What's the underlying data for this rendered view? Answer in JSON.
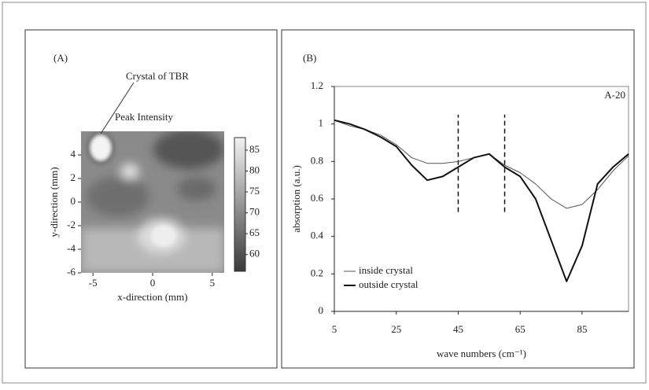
{
  "chart_data": [
    {
      "type": "heatmap",
      "panel_label": "(A)",
      "annotation": "Crystal of TBR",
      "subtitle": "Peak Intensity",
      "xlabel": "x-direction (mm)",
      "ylabel": "y-direction (mm)",
      "xlim": [
        -6,
        6
      ],
      "xticks": [
        -5,
        0,
        5
      ],
      "ylim": [
        -6,
        6
      ],
      "yticks": [
        -6,
        -4,
        -2,
        0,
        2,
        4
      ],
      "clim": [
        56,
        88
      ],
      "cticks": [
        60,
        65,
        70,
        75,
        80,
        85
      ],
      "colormap": [
        "#3a3a3a",
        "#f2f2f2"
      ]
    },
    {
      "type": "line",
      "panel_label": "(B)",
      "title": "A-20",
      "xlabel": "wave numbers (cm⁻¹)",
      "ylabel": "absorption (a.u.)",
      "xlim": [
        5,
        100
      ],
      "xticks": [
        5,
        25,
        45,
        65,
        85
      ],
      "ylim": [
        0,
        1.2
      ],
      "yticks": [
        0,
        0.2,
        0.4,
        0.6,
        0.8,
        1,
        1.2
      ],
      "vlines": [
        45,
        60
      ],
      "vline_ylim": [
        0.53,
        1.05
      ],
      "x": [
        5,
        10,
        15,
        20,
        25,
        30,
        35,
        40,
        45,
        50,
        55,
        60,
        65,
        70,
        75,
        80,
        85,
        90,
        95,
        100
      ],
      "series": [
        {
          "name": "inside crystal",
          "color": "#555555",
          "linewidth": 1,
          "values": [
            1.02,
            0.99,
            0.97,
            0.94,
            0.89,
            0.82,
            0.79,
            0.79,
            0.8,
            0.82,
            0.84,
            0.78,
            0.74,
            0.68,
            0.6,
            0.55,
            0.57,
            0.65,
            0.75,
            0.83
          ]
        },
        {
          "name": "outside crystal",
          "color": "#111111",
          "linewidth": 2,
          "values": [
            1.02,
            1.0,
            0.97,
            0.93,
            0.88,
            0.78,
            0.7,
            0.72,
            0.77,
            0.82,
            0.84,
            0.77,
            0.72,
            0.6,
            0.38,
            0.16,
            0.35,
            0.68,
            0.77,
            0.84
          ]
        }
      ]
    }
  ]
}
